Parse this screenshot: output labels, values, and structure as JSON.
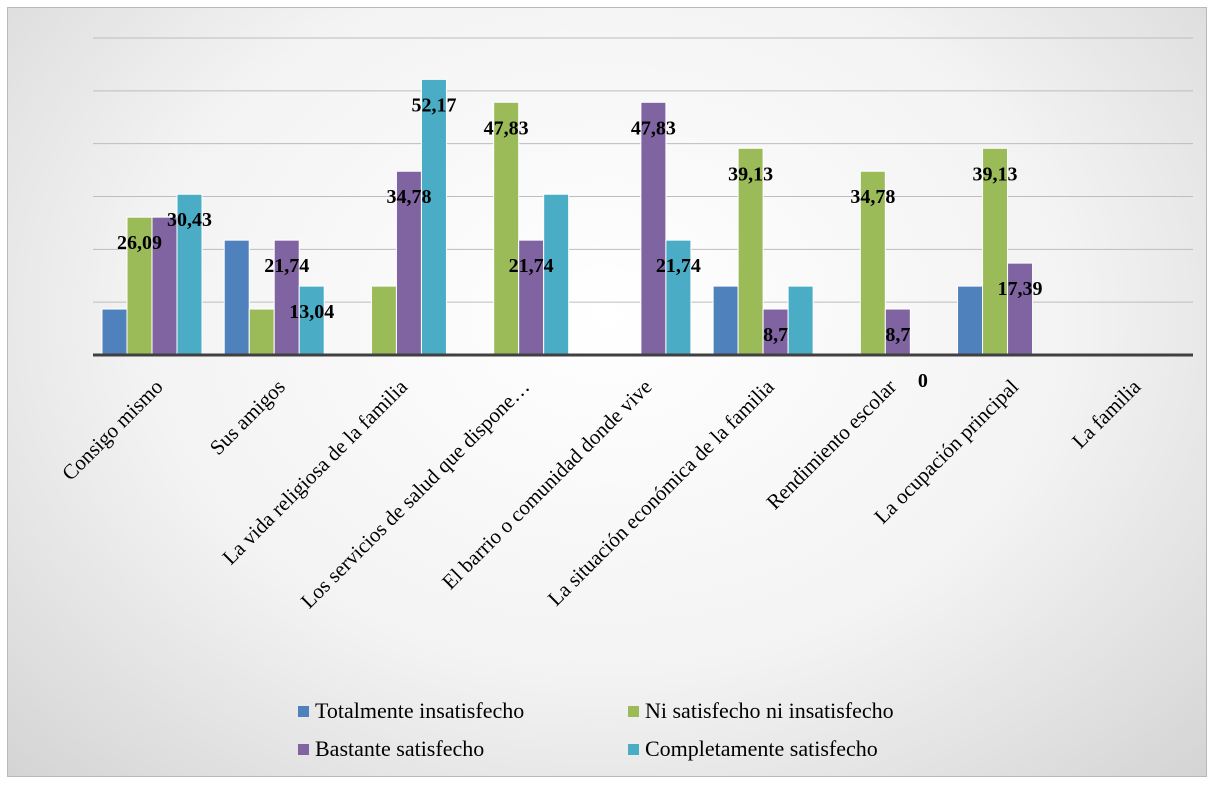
{
  "chart_data": {
    "type": "bar",
    "categories": [
      "Consigo mismo",
      "Sus amigos",
      "La vida religiosa de la familia",
      "Los servicios de salud que dispone…",
      "El barrio o comunidad donde vive",
      "La situación económica de la familia",
      "Rendimiento escolar",
      "La ocupación principal",
      "La familia"
    ],
    "series": [
      {
        "name": "Totalmente insatisfecho",
        "color": "#4f81bd",
        "values": [
          8.7,
          21.74,
          0,
          0,
          0,
          13.04,
          0,
          13.04,
          0
        ],
        "labels": [
          "",
          "",
          "",
          "",
          "",
          "",
          "",
          "",
          ""
        ]
      },
      {
        "name": "Ni satisfecho ni insatisfecho",
        "color": "#9bbb59",
        "values": [
          26.09,
          8.7,
          13.04,
          47.83,
          0,
          39.13,
          34.78,
          39.13,
          0
        ],
        "labels": [
          "26,09",
          "",
          "",
          "47,83",
          "",
          "39,13",
          "34,78",
          "39,13",
          ""
        ]
      },
      {
        "name": "Bastante satisfecho",
        "color": "#8064a2",
        "values": [
          26.09,
          21.74,
          34.78,
          21.74,
          47.83,
          8.7,
          8.7,
          17.39,
          0
        ],
        "labels": [
          "",
          "21,74",
          "34,78",
          "21,74",
          "47,83",
          "8,7",
          "8,7",
          "17,39",
          ""
        ]
      },
      {
        "name": "Completamente satisfecho",
        "color": "#4bacc6",
        "values": [
          30.43,
          13.04,
          52.17,
          30.43,
          21.74,
          13.04,
          0,
          0,
          0
        ],
        "labels": [
          "30,43",
          "13,04",
          "52,17",
          "",
          "21,74",
          "",
          "0",
          "",
          ""
        ]
      }
    ],
    "ylim": [
      0,
      60
    ],
    "grid": true,
    "legend": "bottom"
  }
}
